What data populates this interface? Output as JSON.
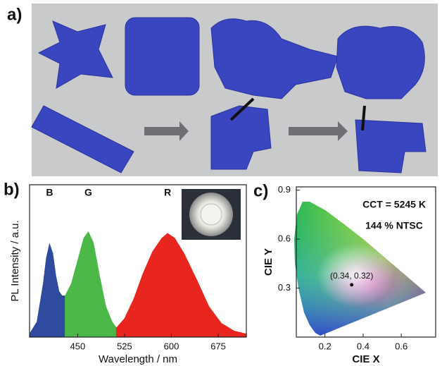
{
  "panel_labels": [
    "a)",
    "b)",
    "c)"
  ],
  "chart_data": [
    {
      "type": "area",
      "x_label": "Wavelength / nm",
      "y_label": "PL Intensity / a.u.",
      "xlim": [
        373,
        720
      ],
      "xticks": [
        450,
        525,
        600,
        675
      ],
      "ylim": [
        0,
        1
      ],
      "series": [
        {
          "name": "B",
          "color": "#2f4a9e",
          "x": [
            373,
            385,
            395,
            400,
            405,
            410,
            415,
            420,
            425,
            430
          ],
          "values": [
            0.02,
            0.1,
            0.35,
            0.52,
            0.61,
            0.55,
            0.4,
            0.3,
            0.27,
            0.27
          ]
        },
        {
          "name": "G",
          "color": "#4cb848",
          "x": [
            430,
            440,
            450,
            460,
            467,
            475,
            485,
            495,
            505,
            512
          ],
          "values": [
            0.27,
            0.35,
            0.5,
            0.65,
            0.69,
            0.62,
            0.4,
            0.2,
            0.1,
            0.06
          ]
        },
        {
          "name": "R",
          "color": "#e8251f",
          "x": [
            512,
            525,
            540,
            555,
            570,
            585,
            594,
            605,
            620,
            640,
            660,
            680,
            700,
            720
          ],
          "values": [
            0.06,
            0.12,
            0.25,
            0.42,
            0.56,
            0.65,
            0.68,
            0.65,
            0.55,
            0.38,
            0.2,
            0.09,
            0.04,
            0.02
          ]
        }
      ]
    },
    {
      "type": "scatter",
      "x_label": "CIE X",
      "y_label": "CIE Y",
      "xlim": [
        0.05,
        0.78
      ],
      "xticks": [
        0.2,
        0.4,
        0.6
      ],
      "ylim": [
        0,
        0.92
      ],
      "yticks": [
        0.3,
        0.6,
        0.9
      ],
      "annotations": [
        "CCT = 5245 K",
        "144 % NTSC"
      ],
      "color": "#111111",
      "x": [
        0.34
      ],
      "values": [
        0.32
      ],
      "value_labels": [
        "(0.34, 0.32)"
      ]
    }
  ]
}
